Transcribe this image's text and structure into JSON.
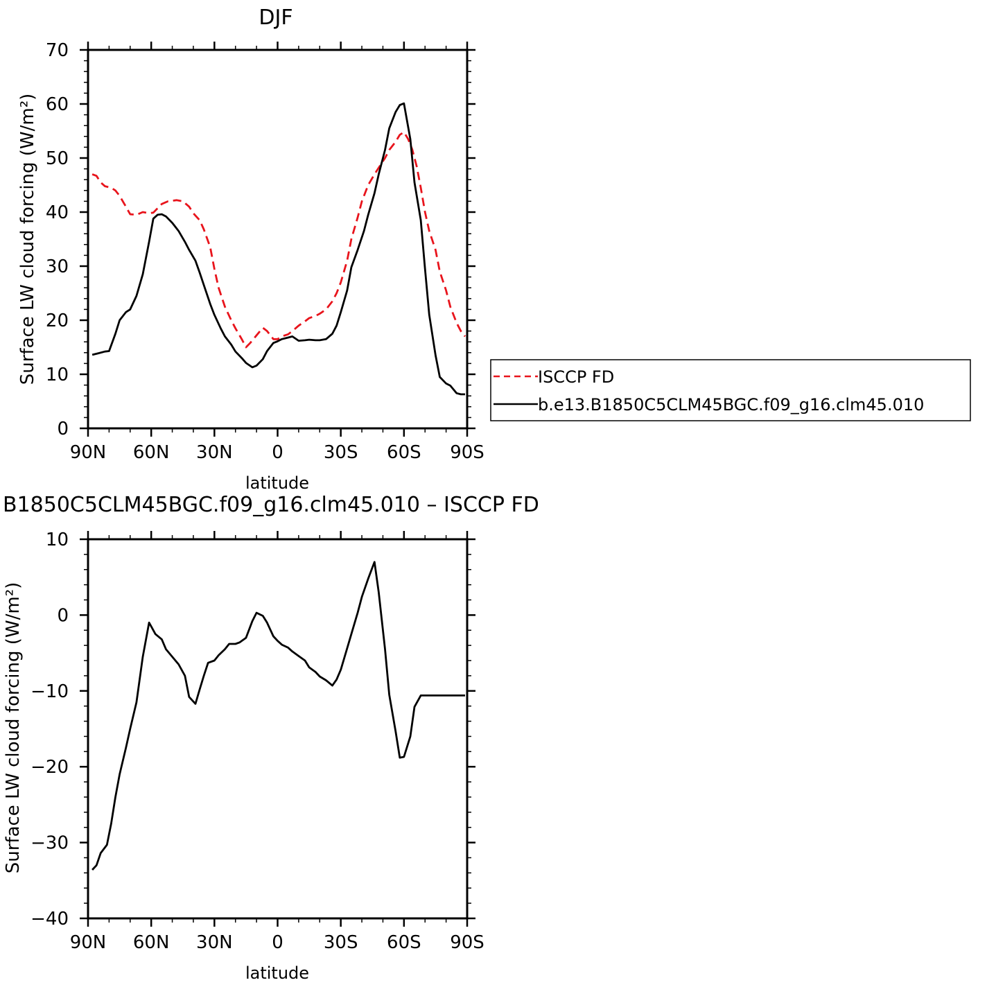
{
  "chart_data": [
    {
      "type": "line",
      "title": "DJF",
      "xlabel": "latitude",
      "ylabel": "Surface LW cloud forcing (W/m²)",
      "xlim": [
        -90,
        90
      ],
      "ylim": [
        0,
        70
      ],
      "x_tick_values": [
        -90,
        -60,
        -30,
        0,
        30,
        60,
        90
      ],
      "x_tick_labels": [
        "90N",
        "60N",
        "30N",
        "0",
        "30S",
        "60S",
        "90S"
      ],
      "y_tick_values": [
        0,
        10,
        20,
        30,
        40,
        50,
        60,
        70
      ],
      "y_tick_labels": [
        "0",
        "10",
        "20",
        "30",
        "40",
        "50",
        "60",
        "70"
      ],
      "legend_position": "outside-right",
      "series": [
        {
          "name": "ISCCP FD",
          "color": "#e8141c",
          "dash": "dashed",
          "x": [
            -88,
            -86,
            -84,
            -82,
            -79,
            -77,
            -75,
            -72,
            -70,
            -67,
            -64,
            -61,
            -59,
            -55,
            -52,
            -48,
            -45,
            -42,
            -40,
            -37,
            -35,
            -32,
            -30,
            -28,
            -25,
            -22,
            -20,
            -17,
            -15,
            -13,
            -10,
            -7,
            -5,
            -2,
            0,
            2,
            5,
            7,
            10,
            13,
            15,
            18,
            20,
            23,
            26,
            28,
            30,
            33,
            35,
            38,
            40,
            43,
            46,
            48,
            51,
            53,
            56,
            58,
            60,
            62,
            64,
            66,
            68,
            70,
            72,
            75,
            77,
            80,
            82,
            85,
            87,
            89
          ],
          "y": [
            47,
            46.7,
            45.5,
            44.8,
            44.5,
            44,
            43,
            41,
            39.6,
            39.5,
            40,
            39.8,
            39.9,
            41.5,
            42,
            42.2,
            42,
            41,
            39.8,
            38.5,
            36.8,
            33.5,
            29.5,
            26,
            22.5,
            20,
            18.5,
            16.5,
            15,
            15.8,
            17.2,
            18.6,
            18,
            16.5,
            16.5,
            17,
            17.4,
            18,
            19,
            19.8,
            20.4,
            20.8,
            21.2,
            22,
            23.5,
            25,
            27,
            31,
            35,
            39,
            42,
            45,
            47,
            48.2,
            50,
            51.5,
            53,
            54.3,
            54.8,
            53.5,
            51.5,
            48.5,
            44.5,
            40,
            36.5,
            33,
            29,
            25.5,
            22.5,
            19.5,
            18,
            17
          ]
        },
        {
          "name": "b.e13.B1850C5CLM45BGC.f09_g16.clm45.010",
          "color": "#000000",
          "dash": "solid",
          "x": [
            -88,
            -85,
            -82,
            -80,
            -77,
            -75,
            -72,
            -70,
            -67,
            -64,
            -61,
            -59,
            -57,
            -55,
            -53,
            -50,
            -47,
            -44,
            -42,
            -39,
            -37,
            -35,
            -32,
            -30,
            -27,
            -25,
            -22,
            -20,
            -17,
            -15,
            -12,
            -10,
            -7,
            -5,
            -2,
            0,
            2,
            5,
            7,
            10,
            13,
            15,
            18,
            20,
            23,
            26,
            28,
            30,
            33,
            35,
            38,
            41,
            43,
            46,
            48,
            51,
            53,
            56,
            58,
            60,
            63,
            65,
            68,
            70,
            72,
            75,
            77,
            80,
            82,
            85,
            87,
            89
          ],
          "y": [
            13.6,
            13.9,
            14.2,
            14.3,
            17.5,
            20,
            21.5,
            22,
            24.5,
            28.5,
            34.5,
            38.8,
            39.5,
            39.6,
            39.2,
            38,
            36.5,
            34.5,
            33,
            31,
            28.8,
            26.5,
            23,
            21,
            18.5,
            17,
            15.5,
            14.2,
            13,
            12.1,
            11.3,
            11.6,
            12.8,
            14.3,
            15.8,
            16.1,
            16.5,
            16.8,
            17,
            16.2,
            16.3,
            16.4,
            16.3,
            16.3,
            16.5,
            17.5,
            19,
            21.5,
            25.5,
            29.8,
            33,
            36.5,
            39.5,
            43.5,
            47,
            51.5,
            55.5,
            58.5,
            59.8,
            60.1,
            53.5,
            45.5,
            38.5,
            29.5,
            21,
            13.5,
            9.5,
            8.3,
            7.9,
            6.5,
            6.3,
            6.3
          ]
        }
      ]
    },
    {
      "type": "line",
      "title": "B1850C5CLM45BGC.f09_g16.clm45.010 – ISCCP FD",
      "xlabel": "latitude",
      "ylabel": "Surface LW cloud forcing (W/m²)",
      "xlim": [
        -90,
        90
      ],
      "ylim": [
        -40,
        10
      ],
      "x_tick_values": [
        -90,
        -60,
        -30,
        0,
        30,
        60,
        90
      ],
      "x_tick_labels": [
        "90N",
        "60N",
        "30N",
        "0",
        "30S",
        "60S",
        "90S"
      ],
      "y_tick_values": [
        -40,
        -30,
        -20,
        -10,
        0,
        10
      ],
      "y_tick_labels": [
        "−40",
        "−30",
        "−20",
        "−10",
        "0",
        "10"
      ],
      "series": [
        {
          "color": "#000000",
          "dash": "solid",
          "x": [
            -88,
            -86,
            -84,
            -81,
            -79,
            -77,
            -75,
            -72,
            -70,
            -67,
            -64,
            -61,
            -60,
            -58,
            -55,
            -53,
            -50,
            -47,
            -44,
            -42,
            -39,
            -37,
            -35,
            -33,
            -30,
            -28,
            -25,
            -23,
            -20,
            -18,
            -15,
            -12,
            -10,
            -7,
            -5,
            -2,
            0,
            2,
            5,
            7,
            10,
            13,
            15,
            18,
            20,
            23,
            26,
            28,
            30,
            33,
            35,
            38,
            40,
            43,
            46,
            48,
            51,
            53,
            56,
            58,
            60,
            63,
            65,
            68,
            70,
            72,
            75,
            77,
            80,
            82,
            85,
            87,
            89
          ],
          "y": [
            -33.6,
            -33,
            -31.4,
            -30.3,
            -27.5,
            -24,
            -21,
            -17.5,
            -15,
            -11.5,
            -5.5,
            -1,
            -1.5,
            -2.5,
            -3.2,
            -4.5,
            -5.5,
            -6.5,
            -8,
            -10.8,
            -11.7,
            -9.8,
            -8,
            -6.3,
            -6,
            -5.3,
            -4.5,
            -3.8,
            -3.8,
            -3.6,
            -3,
            -0.8,
            0.3,
            -0.1,
            -1,
            -2.8,
            -3.4,
            -3.9,
            -4.3,
            -4.8,
            -5.4,
            -6,
            -6.9,
            -7.5,
            -8.1,
            -8.6,
            -9.3,
            -8.5,
            -7.2,
            -4.4,
            -2.5,
            0.3,
            2.4,
            4.8,
            7,
            3,
            -4.5,
            -10.5,
            -15.3,
            -18.8,
            -18.7,
            -16,
            -12.1,
            -10.6,
            -10.6,
            -10.6,
            -10.6,
            -10.6,
            -10.6,
            -10.6,
            -10.6,
            -10.6,
            -10.6
          ]
        }
      ]
    }
  ]
}
